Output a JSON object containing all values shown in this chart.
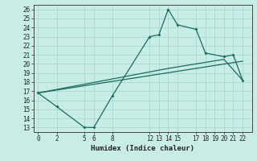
{
  "title": "",
  "xlabel": "Humidex (Indice chaleur)",
  "xlim": [
    -0.5,
    23
  ],
  "ylim": [
    12.5,
    26.5
  ],
  "xticks": [
    0,
    2,
    5,
    6,
    8,
    12,
    13,
    14,
    15,
    17,
    18,
    19,
    20,
    21,
    22
  ],
  "yticks": [
    13,
    14,
    15,
    16,
    17,
    18,
    19,
    20,
    21,
    22,
    23,
    24,
    25,
    26
  ],
  "bg_color": "#c8ece6",
  "grid_color": "#a0d4cc",
  "line_color": "#1a6b60",
  "line1_x": [
    0,
    2,
    5,
    6,
    8,
    12,
    13,
    14,
    15,
    17,
    18,
    20,
    21,
    22
  ],
  "line1_y": [
    16.8,
    15.3,
    13.0,
    13.0,
    16.5,
    23.0,
    23.2,
    26.0,
    24.3,
    23.8,
    21.2,
    20.8,
    21.0,
    18.2
  ],
  "line2_x": [
    0,
    14,
    20,
    22
  ],
  "line2_y": [
    16.8,
    19.5,
    20.5,
    18.2
  ],
  "line3_x": [
    0,
    22
  ],
  "line3_y": [
    16.8,
    20.3
  ]
}
